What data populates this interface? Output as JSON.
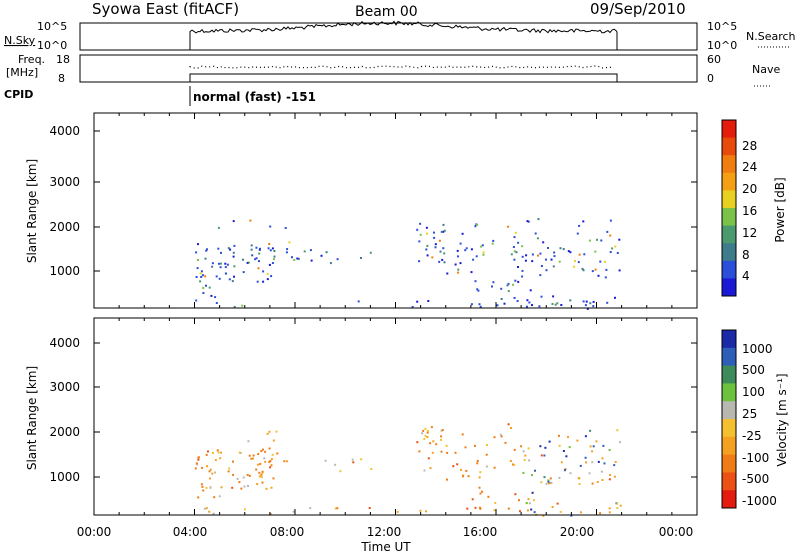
{
  "header": {
    "station": "Syowa East (fitACF)",
    "beam": "Beam 00",
    "date": "09/Sep/2010"
  },
  "strip_panels": {
    "nsky_label": "N.Sky",
    "nsky_ticks": [
      "10^5",
      "10^0"
    ],
    "nsearch_label": "N.Search",
    "nsearch_ticks": [
      "10^5",
      "10^0"
    ],
    "freq_label_1": "Freq.",
    "freq_label_2": "[MHz]",
    "freq_ticks": [
      "18",
      "8"
    ],
    "nave_label": "Nave",
    "nave_ticks": [
      "60",
      "0"
    ],
    "cpid_label": "CPID",
    "cpid_text": "normal (fast) -151"
  },
  "chart_data": [
    {
      "type": "heatmap",
      "parameter": "power",
      "ylabel": "Slant Range [km]",
      "ylim": [
        200,
        4600
      ],
      "yticks": [
        "4000",
        "3000",
        "2000",
        "1000"
      ],
      "xlim_hours": [
        0,
        24
      ],
      "data_coverage_hours": [
        4.0,
        21.0
      ],
      "colorbar": {
        "label": "Power [dB]",
        "ticks": [
          "28",
          "24",
          "20",
          "16",
          "12",
          "8",
          "4"
        ],
        "colors": [
          "#1a1ad6",
          "#2b4fd8",
          "#3e7c8c",
          "#4a9a6e",
          "#7bc24a",
          "#e8d021",
          "#f5a014",
          "#f07d10",
          "#e84a0c",
          "#e41c0c"
        ]
      }
    },
    {
      "type": "heatmap",
      "parameter": "velocity",
      "ylabel": "Slant Range [km]",
      "ylim": [
        200,
        4600
      ],
      "yticks": [
        "4000",
        "3000",
        "2000",
        "1000"
      ],
      "xlim_hours": [
        0,
        24
      ],
      "data_coverage_hours": [
        4.0,
        21.0
      ],
      "colorbar": {
        "label": "Velocity [m s⁻¹]",
        "ticks": [
          "1000",
          "500",
          "100",
          "25",
          "-25",
          "-100",
          "-500",
          "-1000"
        ],
        "colors": [
          "#1c2aa8",
          "#2e5fb8",
          "#3d8a5a",
          "#6cc23c",
          "#b8b8b0",
          "#f4c030",
          "#f4a020",
          "#f07c18",
          "#ec5014",
          "#e41c10"
        ]
      }
    }
  ],
  "x_axis": {
    "label": "Time UT",
    "ticks": [
      "00:00",
      "04:00",
      "08:00",
      "12:00",
      "16:00",
      "20:00",
      "00:00"
    ]
  }
}
